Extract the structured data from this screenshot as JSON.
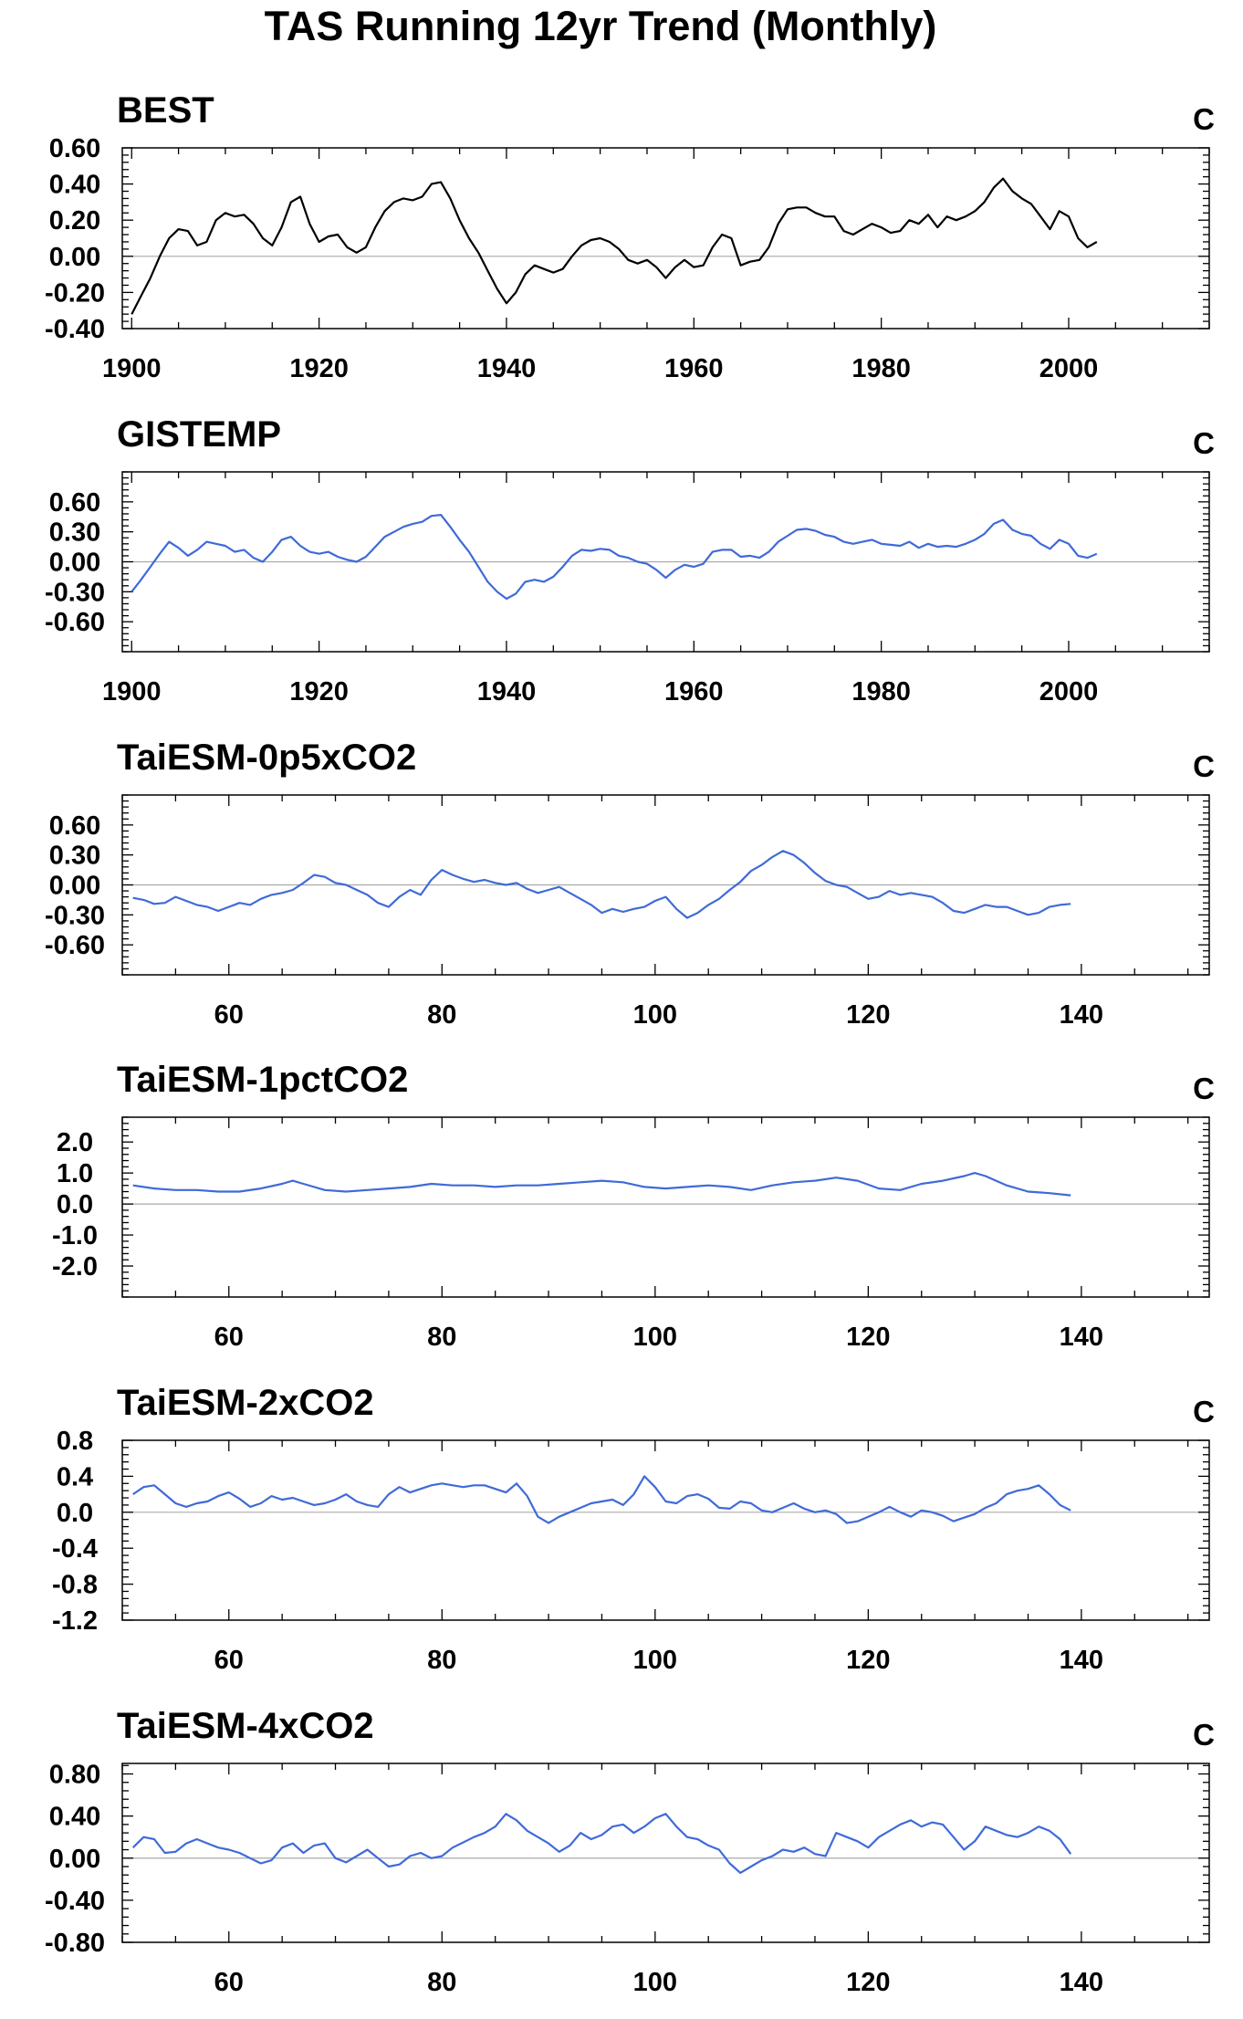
{
  "title": "TAS Running 12yr Trend (Monthly)",
  "colors": {
    "obs": "#000000",
    "model": "#3f6ad8",
    "reference": "#aaaaaa"
  },
  "chart_data": [
    {
      "type": "line",
      "title": "BEST",
      "unit": "C",
      "color": "#000000",
      "xlim": [
        1899,
        2015
      ],
      "xticks": [
        1900,
        1920,
        1940,
        1960,
        1980,
        2000
      ],
      "ylim": [
        -0.4,
        0.6
      ],
      "yticks": [
        -0.4,
        -0.2,
        0.0,
        0.2,
        0.4,
        0.6
      ],
      "ytick_labels": [
        "-0.40",
        "-0.20",
        "0.00",
        "0.20",
        "0.40",
        "0.60"
      ],
      "x": [
        1900,
        1901,
        1902,
        1903,
        1904,
        1905,
        1906,
        1907,
        1908,
        1909,
        1910,
        1911,
        1912,
        1913,
        1914,
        1915,
        1916,
        1917,
        1918,
        1919,
        1920,
        1921,
        1922,
        1923,
        1924,
        1925,
        1926,
        1927,
        1928,
        1929,
        1930,
        1931,
        1932,
        1933,
        1934,
        1935,
        1936,
        1937,
        1938,
        1939,
        1940,
        1941,
        1942,
        1943,
        1944,
        1945,
        1946,
        1947,
        1948,
        1949,
        1950,
        1951,
        1952,
        1953,
        1954,
        1955,
        1956,
        1957,
        1958,
        1959,
        1960,
        1961,
        1962,
        1963,
        1964,
        1965,
        1966,
        1967,
        1968,
        1969,
        1970,
        1971,
        1972,
        1973,
        1974,
        1975,
        1976,
        1977,
        1978,
        1979,
        1980,
        1981,
        1982,
        1983,
        1984,
        1985,
        1986,
        1987,
        1988,
        1989,
        1990,
        1991,
        1992,
        1993,
        1994,
        1995,
        1996,
        1997,
        1998,
        1999,
        2000,
        2001,
        2002,
        2003
      ],
      "y": [
        -0.32,
        -0.22,
        -0.12,
        0.0,
        0.1,
        0.15,
        0.14,
        0.06,
        0.08,
        0.2,
        0.24,
        0.22,
        0.23,
        0.18,
        0.1,
        0.06,
        0.16,
        0.3,
        0.33,
        0.18,
        0.08,
        0.11,
        0.12,
        0.05,
        0.02,
        0.05,
        0.16,
        0.25,
        0.3,
        0.32,
        0.31,
        0.33,
        0.4,
        0.41,
        0.32,
        0.2,
        0.1,
        0.02,
        -0.08,
        -0.18,
        -0.26,
        -0.2,
        -0.1,
        -0.05,
        -0.07,
        -0.09,
        -0.07,
        0.0,
        0.06,
        0.09,
        0.1,
        0.08,
        0.04,
        -0.02,
        -0.04,
        -0.02,
        -0.06,
        -0.12,
        -0.06,
        -0.02,
        -0.06,
        -0.05,
        0.05,
        0.12,
        0.1,
        -0.05,
        -0.03,
        -0.02,
        0.05,
        0.18,
        0.26,
        0.27,
        0.27,
        0.24,
        0.22,
        0.22,
        0.14,
        0.12,
        0.15,
        0.18,
        0.16,
        0.13,
        0.14,
        0.2,
        0.18,
        0.23,
        0.16,
        0.22,
        0.2,
        0.22,
        0.25,
        0.3,
        0.38,
        0.43,
        0.36,
        0.32,
        0.29,
        0.22,
        0.15,
        0.25,
        0.22,
        0.1,
        0.05,
        0.08
      ]
    },
    {
      "type": "line",
      "title": "GISTEMP",
      "unit": "C",
      "color": "#3f6ad8",
      "xlim": [
        1899,
        2015
      ],
      "xticks": [
        1900,
        1920,
        1940,
        1960,
        1980,
        2000
      ],
      "ylim": [
        -0.9,
        0.9
      ],
      "yticks": [
        -0.6,
        -0.3,
        0.0,
        0.3,
        0.6
      ],
      "ytick_labels": [
        "-0.60",
        "-0.30",
        "0.00",
        "0.30",
        "0.60"
      ],
      "x": [
        1900,
        1901,
        1902,
        1903,
        1904,
        1905,
        1906,
        1907,
        1908,
        1909,
        1910,
        1911,
        1912,
        1913,
        1914,
        1915,
        1916,
        1917,
        1918,
        1919,
        1920,
        1921,
        1922,
        1923,
        1924,
        1925,
        1926,
        1927,
        1928,
        1929,
        1930,
        1931,
        1932,
        1933,
        1934,
        1935,
        1936,
        1937,
        1938,
        1939,
        1940,
        1941,
        1942,
        1943,
        1944,
        1945,
        1946,
        1947,
        1948,
        1949,
        1950,
        1951,
        1952,
        1953,
        1954,
        1955,
        1956,
        1957,
        1958,
        1959,
        1960,
        1961,
        1962,
        1963,
        1964,
        1965,
        1966,
        1967,
        1968,
        1969,
        1970,
        1971,
        1972,
        1973,
        1974,
        1975,
        1976,
        1977,
        1978,
        1979,
        1980,
        1981,
        1982,
        1983,
        1984,
        1985,
        1986,
        1987,
        1988,
        1989,
        1990,
        1991,
        1992,
        1993,
        1994,
        1995,
        1996,
        1997,
        1998,
        1999,
        2000,
        2001,
        2002,
        2003
      ],
      "y": [
        -0.3,
        -0.18,
        -0.05,
        0.08,
        0.2,
        0.14,
        0.06,
        0.12,
        0.2,
        0.18,
        0.16,
        0.1,
        0.12,
        0.04,
        0.0,
        0.1,
        0.22,
        0.25,
        0.16,
        0.1,
        0.08,
        0.1,
        0.05,
        0.02,
        0.0,
        0.05,
        0.15,
        0.25,
        0.3,
        0.35,
        0.38,
        0.4,
        0.46,
        0.47,
        0.35,
        0.22,
        0.1,
        -0.05,
        -0.2,
        -0.3,
        -0.37,
        -0.32,
        -0.2,
        -0.18,
        -0.2,
        -0.15,
        -0.05,
        0.06,
        0.12,
        0.11,
        0.13,
        0.12,
        0.06,
        0.04,
        0.0,
        -0.02,
        -0.08,
        -0.16,
        -0.08,
        -0.03,
        -0.05,
        -0.02,
        0.1,
        0.12,
        0.12,
        0.05,
        0.06,
        0.04,
        0.1,
        0.2,
        0.26,
        0.32,
        0.33,
        0.31,
        0.27,
        0.25,
        0.2,
        0.18,
        0.2,
        0.22,
        0.18,
        0.17,
        0.16,
        0.2,
        0.14,
        0.18,
        0.15,
        0.16,
        0.15,
        0.18,
        0.22,
        0.28,
        0.38,
        0.42,
        0.32,
        0.28,
        0.26,
        0.18,
        0.13,
        0.22,
        0.18,
        0.06,
        0.04,
        0.08
      ]
    },
    {
      "type": "line",
      "title": "TaiESM-0p5xCO2",
      "unit": "C",
      "color": "#3f6ad8",
      "xlim": [
        50,
        152
      ],
      "xticks": [
        60,
        80,
        100,
        120,
        140
      ],
      "ylim": [
        -0.9,
        0.9
      ],
      "yticks": [
        -0.6,
        -0.3,
        0.0,
        0.3,
        0.6
      ],
      "ytick_labels": [
        "-0.60",
        "-0.30",
        "0.00",
        "0.30",
        "0.60"
      ],
      "x": [
        51,
        52,
        53,
        54,
        55,
        56,
        57,
        58,
        59,
        60,
        61,
        62,
        63,
        64,
        65,
        66,
        67,
        68,
        69,
        70,
        71,
        72,
        73,
        74,
        75,
        76,
        77,
        78,
        79,
        80,
        81,
        82,
        83,
        84,
        85,
        86,
        87,
        88,
        89,
        90,
        91,
        92,
        93,
        94,
        95,
        96,
        97,
        98,
        99,
        100,
        101,
        102,
        103,
        104,
        105,
        106,
        107,
        108,
        109,
        110,
        111,
        112,
        113,
        114,
        115,
        116,
        117,
        118,
        119,
        120,
        121,
        122,
        123,
        124,
        125,
        126,
        127,
        128,
        129,
        130,
        131,
        132,
        133,
        134,
        135,
        136,
        137,
        138,
        139
      ],
      "y": [
        -0.13,
        -0.15,
        -0.19,
        -0.18,
        -0.12,
        -0.16,
        -0.2,
        -0.22,
        -0.26,
        -0.22,
        -0.18,
        -0.2,
        -0.14,
        -0.1,
        -0.08,
        -0.05,
        0.02,
        0.1,
        0.08,
        0.02,
        0.0,
        -0.05,
        -0.1,
        -0.18,
        -0.22,
        -0.12,
        -0.05,
        -0.1,
        0.05,
        0.15,
        0.1,
        0.06,
        0.03,
        0.05,
        0.02,
        0.0,
        0.02,
        -0.04,
        -0.08,
        -0.05,
        -0.02,
        -0.08,
        -0.14,
        -0.2,
        -0.28,
        -0.24,
        -0.27,
        -0.24,
        -0.22,
        -0.16,
        -0.12,
        -0.24,
        -0.33,
        -0.28,
        -0.2,
        -0.14,
        -0.05,
        0.03,
        0.14,
        0.2,
        0.28,
        0.34,
        0.3,
        0.22,
        0.12,
        0.04,
        0.0,
        -0.02,
        -0.08,
        -0.14,
        -0.12,
        -0.06,
        -0.1,
        -0.08,
        -0.1,
        -0.12,
        -0.18,
        -0.26,
        -0.28,
        -0.24,
        -0.2,
        -0.22,
        -0.22,
        -0.26,
        -0.3,
        -0.28,
        -0.22,
        -0.2,
        -0.19
      ]
    },
    {
      "type": "line",
      "title": "TaiESM-1pctCO2",
      "unit": "C",
      "color": "#3f6ad8",
      "xlim": [
        50,
        152
      ],
      "xticks": [
        60,
        80,
        100,
        120,
        140
      ],
      "ylim": [
        -3,
        2.8
      ],
      "yticks": [
        -2.0,
        -1.0,
        0.0,
        1.0,
        2.0
      ],
      "ytick_labels": [
        "-2.0",
        "-1.0",
        "0.0",
        "1.0",
        "2.0"
      ],
      "x": [
        51,
        53,
        55,
        57,
        59,
        61,
        63,
        65,
        66,
        67,
        69,
        71,
        73,
        75,
        77,
        79,
        81,
        83,
        85,
        87,
        89,
        91,
        93,
        95,
        97,
        99,
        101,
        103,
        105,
        107,
        109,
        111,
        113,
        115,
        117,
        119,
        121,
        123,
        125,
        127,
        129,
        130,
        131,
        133,
        135,
        137,
        139
      ],
      "y": [
        0.6,
        0.5,
        0.45,
        0.45,
        0.4,
        0.4,
        0.5,
        0.65,
        0.75,
        0.65,
        0.45,
        0.4,
        0.45,
        0.5,
        0.55,
        0.65,
        0.6,
        0.6,
        0.55,
        0.6,
        0.6,
        0.65,
        0.7,
        0.75,
        0.7,
        0.55,
        0.5,
        0.55,
        0.6,
        0.55,
        0.45,
        0.6,
        0.7,
        0.75,
        0.85,
        0.75,
        0.5,
        0.45,
        0.65,
        0.75,
        0.9,
        1.0,
        0.9,
        0.6,
        0.4,
        0.35,
        0.28
      ]
    },
    {
      "type": "line",
      "title": "TaiESM-2xCO2",
      "unit": "C",
      "color": "#3f6ad8",
      "xlim": [
        50,
        152
      ],
      "xticks": [
        60,
        80,
        100,
        120,
        140
      ],
      "ylim": [
        -1.2,
        0.8
      ],
      "yticks": [
        -1.2,
        -0.8,
        -0.4,
        0.0,
        0.4,
        0.8
      ],
      "ytick_labels": [
        "-1.2",
        "-0.8",
        "-0.4",
        "0.0",
        "0.4",
        "0.8"
      ],
      "x": [
        51,
        52,
        53,
        54,
        55,
        56,
        57,
        58,
        59,
        60,
        61,
        62,
        63,
        64,
        65,
        66,
        67,
        68,
        69,
        70,
        71,
        72,
        73,
        74,
        75,
        76,
        77,
        78,
        79,
        80,
        81,
        82,
        83,
        84,
        85,
        86,
        87,
        88,
        89,
        90,
        91,
        92,
        93,
        94,
        95,
        96,
        97,
        98,
        99,
        100,
        101,
        102,
        103,
        104,
        105,
        106,
        107,
        108,
        109,
        110,
        111,
        112,
        113,
        114,
        115,
        116,
        117,
        118,
        119,
        120,
        121,
        122,
        123,
        124,
        125,
        126,
        127,
        128,
        129,
        130,
        131,
        132,
        133,
        134,
        135,
        136,
        137,
        138,
        139
      ],
      "y": [
        0.2,
        0.28,
        0.3,
        0.2,
        0.1,
        0.06,
        0.1,
        0.12,
        0.18,
        0.22,
        0.15,
        0.06,
        0.1,
        0.18,
        0.14,
        0.16,
        0.12,
        0.08,
        0.1,
        0.14,
        0.2,
        0.12,
        0.08,
        0.06,
        0.2,
        0.28,
        0.22,
        0.26,
        0.3,
        0.32,
        0.3,
        0.28,
        0.3,
        0.3,
        0.26,
        0.22,
        0.32,
        0.18,
        -0.05,
        -0.12,
        -0.05,
        0.0,
        0.05,
        0.1,
        0.12,
        0.14,
        0.08,
        0.2,
        0.4,
        0.28,
        0.12,
        0.1,
        0.18,
        0.2,
        0.15,
        0.05,
        0.04,
        0.12,
        0.1,
        0.02,
        0.0,
        0.05,
        0.1,
        0.04,
        0.0,
        0.02,
        -0.02,
        -0.12,
        -0.1,
        -0.05,
        0.0,
        0.06,
        0.0,
        -0.05,
        0.02,
        0.0,
        -0.04,
        -0.1,
        -0.06,
        -0.02,
        0.05,
        0.1,
        0.2,
        0.24,
        0.26,
        0.3,
        0.2,
        0.08,
        0.02
      ]
    },
    {
      "type": "line",
      "title": "TaiESM-4xCO2",
      "unit": "C",
      "color": "#3f6ad8",
      "xlim": [
        50,
        152
      ],
      "xticks": [
        60,
        80,
        100,
        120,
        140
      ],
      "ylim": [
        -0.8,
        0.9
      ],
      "yticks": [
        -0.8,
        -0.4,
        0.0,
        0.4,
        0.8
      ],
      "ytick_labels": [
        "-0.80",
        "-0.40",
        "0.00",
        "0.40",
        "0.80"
      ],
      "x": [
        51,
        52,
        53,
        54,
        55,
        56,
        57,
        58,
        59,
        60,
        61,
        62,
        63,
        64,
        65,
        66,
        67,
        68,
        69,
        70,
        71,
        72,
        73,
        74,
        75,
        76,
        77,
        78,
        79,
        80,
        81,
        82,
        83,
        84,
        85,
        86,
        87,
        88,
        89,
        90,
        91,
        92,
        93,
        94,
        95,
        96,
        97,
        98,
        99,
        100,
        101,
        102,
        103,
        104,
        105,
        106,
        107,
        108,
        109,
        110,
        111,
        112,
        113,
        114,
        115,
        116,
        117,
        118,
        119,
        120,
        121,
        122,
        123,
        124,
        125,
        126,
        127,
        128,
        129,
        130,
        131,
        132,
        133,
        134,
        135,
        136,
        137,
        138,
        139
      ],
      "y": [
        0.1,
        0.2,
        0.18,
        0.05,
        0.06,
        0.14,
        0.18,
        0.14,
        0.1,
        0.08,
        0.05,
        0.0,
        -0.05,
        -0.02,
        0.1,
        0.14,
        0.05,
        0.12,
        0.14,
        0.0,
        -0.04,
        0.02,
        0.08,
        0.0,
        -0.08,
        -0.06,
        0.02,
        0.05,
        0.0,
        0.02,
        0.1,
        0.15,
        0.2,
        0.24,
        0.3,
        0.42,
        0.36,
        0.26,
        0.2,
        0.14,
        0.06,
        0.12,
        0.24,
        0.18,
        0.22,
        0.3,
        0.32,
        0.24,
        0.3,
        0.38,
        0.42,
        0.3,
        0.2,
        0.18,
        0.12,
        0.08,
        -0.05,
        -0.14,
        -0.08,
        -0.02,
        0.02,
        0.08,
        0.06,
        0.1,
        0.04,
        0.02,
        0.24,
        0.2,
        0.16,
        0.1,
        0.2,
        0.26,
        0.32,
        0.36,
        0.3,
        0.34,
        0.32,
        0.2,
        0.08,
        0.16,
        0.3,
        0.26,
        0.22,
        0.2,
        0.24,
        0.3,
        0.26,
        0.18,
        0.04
      ]
    }
  ]
}
